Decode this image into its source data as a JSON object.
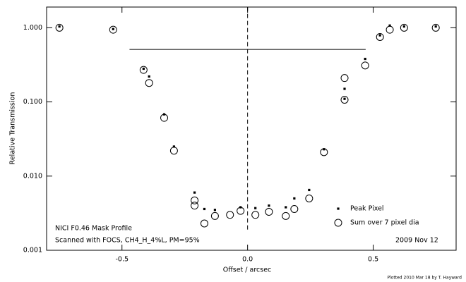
{
  "chart_data": {
    "type": "scatter",
    "ylabel": "Relative Transmission",
    "xlabel": "Offset / arcsec",
    "title": "NICI F0.46 Mask Profile",
    "subtitle": "Scanned with FOCS, CH4_H_4%L, PM=95%",
    "date": "2009 Nov 12",
    "footer": "Plotted 2010 Mar 18 by T. Hayward",
    "log_y": true,
    "xlim": [
      -0.8,
      0.83
    ],
    "ylim": [
      0.001,
      1.9
    ],
    "xticks": [
      -0.5,
      {
        "value": 0,
        "label": "0.0"
      },
      0.5
    ],
    "yticks": [
      {
        "value": 1,
        "label": "1.000"
      },
      {
        "value": 0.1,
        "label": "0.100"
      },
      {
        "value": 0.01,
        "label": "0.010"
      },
      {
        "value": 0.001,
        "label": "0.001"
      }
    ],
    "hline": {
      "y": 0.51,
      "x": [
        -0.47,
        0.47
      ]
    },
    "vline": {
      "x": 0,
      "y": [
        0.0019,
        1.9
      ]
    },
    "series": [
      {
        "name": "Peak Pixel",
        "marker": "square",
        "color": "#000000",
        "x": [
          -0.749,
          -0.535,
          -0.414,
          -0.392,
          -0.332,
          -0.293,
          -0.211,
          -0.172,
          -0.13,
          -0.028,
          0.031,
          0.085,
          0.152,
          0.186,
          0.245,
          0.304,
          0.386,
          0.386,
          0.468,
          0.527,
          0.566,
          0.623,
          0.749
        ],
        "values": [
          1.04,
          0.96,
          0.28,
          0.22,
          0.068,
          0.025,
          0.006,
          0.0036,
          0.0035,
          0.0038,
          0.0037,
          0.004,
          0.0038,
          0.005,
          0.0065,
          0.023,
          0.15,
          0.11,
          0.38,
          0.79,
          1.07,
          1.04,
          1.04
        ]
      },
      {
        "name": "Sum over 7 pixel dia",
        "marker": "circle",
        "color": "#000000",
        "x": [
          -0.749,
          -0.535,
          -0.414,
          -0.392,
          -0.332,
          -0.293,
          -0.211,
          -0.211,
          -0.172,
          -0.13,
          -0.07,
          -0.028,
          0.031,
          0.085,
          0.152,
          0.186,
          0.245,
          0.304,
          0.386,
          0.386,
          0.468,
          0.527,
          0.566,
          0.623,
          0.749
        ],
        "values": [
          1.0,
          0.94,
          0.27,
          0.18,
          0.061,
          0.022,
          0.0047,
          0.004,
          0.0023,
          0.0029,
          0.003,
          0.0034,
          0.003,
          0.0033,
          0.0029,
          0.0036,
          0.005,
          0.021,
          0.107,
          0.21,
          0.31,
          0.75,
          0.94,
          1.0,
          1.0
        ]
      }
    ]
  }
}
